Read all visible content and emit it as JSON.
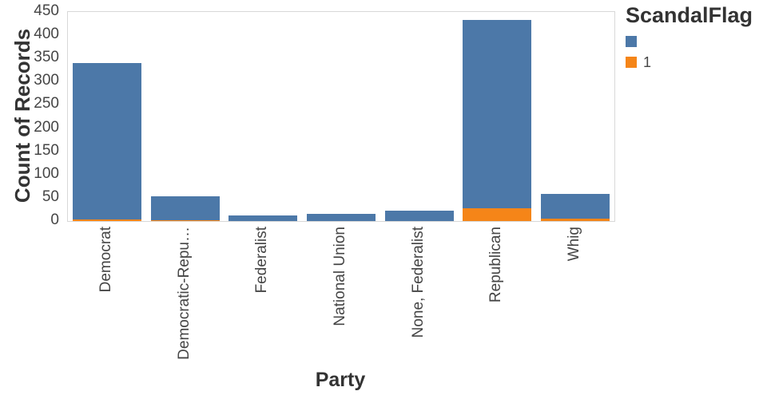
{
  "chart_data": {
    "type": "bar",
    "stacked": true,
    "xlabel": "Party",
    "ylabel": "Count of Records",
    "ylim": [
      0,
      450
    ],
    "ytick_step": 50,
    "grid": false,
    "categories": [
      "Democrat",
      "Democratic-Repu…",
      "Federalist",
      "National Union",
      "None, Federalist",
      "Republican",
      "Whig"
    ],
    "series": [
      {
        "name": "1",
        "color": "#f58518",
        "values": [
          4,
          2,
          0,
          0,
          0,
          27,
          6
        ]
      },
      {
        "name": "",
        "color": "#4c78a8",
        "values": [
          336,
          51,
          12,
          16,
          22,
          406,
          52
        ]
      }
    ],
    "totals": [
      340,
      53,
      12,
      16,
      22,
      433,
      58
    ],
    "legend": {
      "title": "ScandalFlag",
      "position": "top-right",
      "items": [
        {
          "label": "",
          "color": "#4c78a8"
        },
        {
          "label": "1",
          "color": "#f58518"
        }
      ]
    }
  },
  "colors": {
    "axis_title": "#333333",
    "tick_label": "#454545",
    "axis_line": "#d8d8d8",
    "background": "#ffffff"
  }
}
